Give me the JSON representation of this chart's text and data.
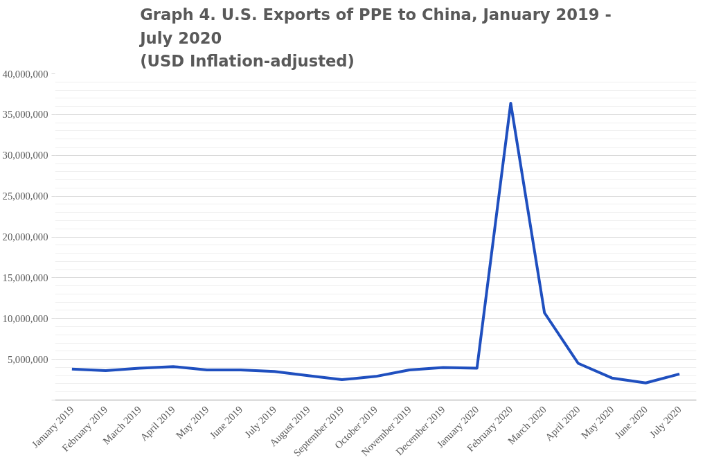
{
  "chart_data": {
    "type": "line",
    "title": "Graph 4. U.S. Exports of PPE to China, January 2019 -\nJuly 2020\n(USD Inflation-adjusted)",
    "categories": [
      "January 2019",
      "February 2019",
      "March 2019",
      "April 2019",
      "May 2019",
      "June 2019",
      "July 2019",
      "August 2019",
      "September 2019",
      "October 2019",
      "November 2019",
      "December 2019",
      "January 2020",
      "February 2020",
      "March 2020",
      "April 2020",
      "May 2020",
      "June 2020",
      "July 2020"
    ],
    "series": [
      {
        "color": "#1f4fbf",
        "values": [
          3800000,
          3600000,
          3900000,
          4100000,
          3700000,
          3700000,
          3500000,
          3000000,
          2500000,
          2900000,
          3700000,
          4000000,
          3900000,
          36400000,
          10700000,
          4500000,
          2700000,
          2100000,
          3200000
        ]
      }
    ],
    "ylim": [
      0,
      40000000
    ],
    "yticks": [
      {
        "value": 0,
        "label": null
      },
      {
        "value": 5000000,
        "label": "5,000,000"
      },
      {
        "value": 10000000,
        "label": "10,000,000"
      },
      {
        "value": 15000000,
        "label": "15,000,000"
      },
      {
        "value": 20000000,
        "label": "20,000,000"
      },
      {
        "value": 25000000,
        "label": "25,000,000"
      },
      {
        "value": 30000000,
        "label": "30,000,000"
      },
      {
        "value": 35000000,
        "label": "35,000,000"
      },
      {
        "value": 40000000,
        "label": "40,000,000"
      }
    ],
    "grid": "y",
    "marker": "none",
    "line_style": "solid"
  }
}
